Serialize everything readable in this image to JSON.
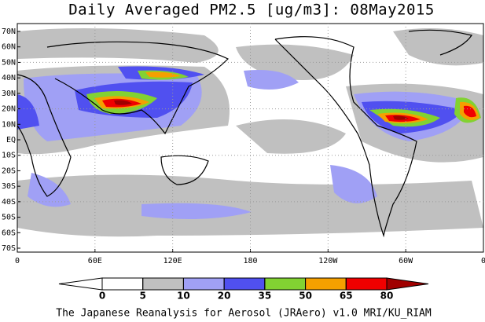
{
  "header": {
    "title": "Daily Averaged PM2.5 [ug/m3]: 08May2015"
  },
  "map": {
    "lat_labels": [
      "70N",
      "60N",
      "50N",
      "40N",
      "30N",
      "20N",
      "10N",
      "EQ",
      "10S",
      "20S",
      "30S",
      "40S",
      "50S",
      "60S",
      "70S"
    ],
    "lon_labels": [
      "0",
      "60E",
      "120E",
      "180",
      "120W",
      "60W",
      "0"
    ]
  },
  "colorbar": {
    "levels": [
      0,
      5,
      10,
      20,
      35,
      50,
      65,
      80
    ],
    "colors": [
      "#ffffff",
      "#ffffff",
      "#c0c0c0",
      "#a0a0f5",
      "#5050f0",
      "#82d232",
      "#f5a000",
      "#f00000",
      "#a00000"
    ]
  },
  "footer": {
    "text": "The Japanese Reanalysis for Aerosol (JRAero) v1.0 MRI/KU_RIAM"
  }
}
